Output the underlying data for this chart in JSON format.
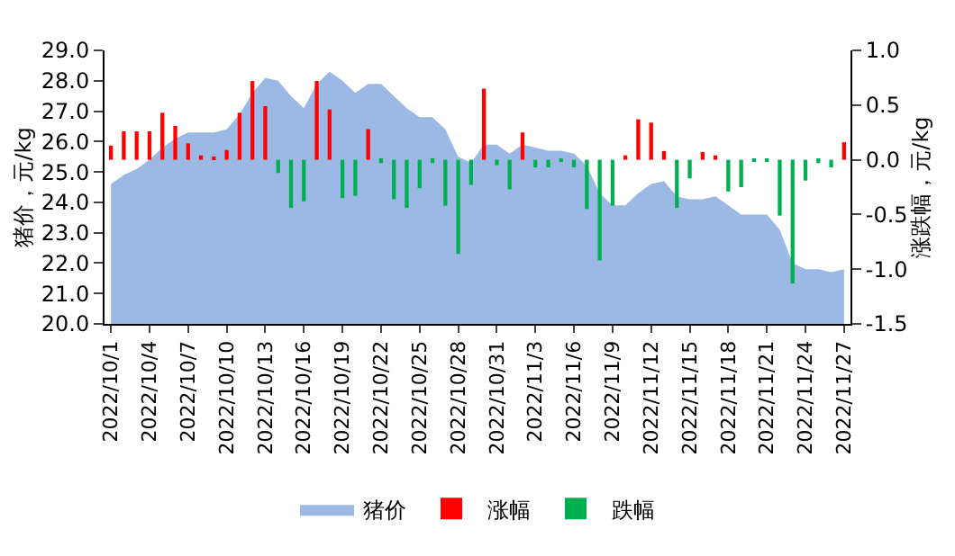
{
  "chart_data": {
    "type": "area",
    "categories": [
      "2022/10/1",
      null,
      null,
      "2022/10/4",
      null,
      null,
      "2022/10/7",
      null,
      null,
      "2022/10/10",
      null,
      null,
      "2022/10/13",
      null,
      null,
      "2022/10/16",
      null,
      null,
      "2022/10/19",
      null,
      null,
      "2022/10/22",
      null,
      null,
      "2022/10/25",
      null,
      null,
      "2022/10/28",
      null,
      null,
      "2022/10/31",
      null,
      null,
      "2022/11/3",
      null,
      null,
      "2022/11/6",
      null,
      null,
      "2022/11/9",
      null,
      null,
      "2022/11/12",
      null,
      null,
      "2022/11/15",
      null,
      null,
      "2022/11/18",
      null,
      null,
      "2022/11/21",
      null,
      null,
      "2022/11/24",
      null,
      null,
      "2022/11/27"
    ],
    "series": [
      {
        "name": "猪价",
        "color": "#9bb9e4",
        "values": [
          24.6,
          24.9,
          25.1,
          25.4,
          25.8,
          26.1,
          26.3,
          26.3,
          26.3,
          26.4,
          26.9,
          27.6,
          28.1,
          28.0,
          27.5,
          27.1,
          27.9,
          28.3,
          28.0,
          27.6,
          27.9,
          27.9,
          27.5,
          27.1,
          26.8,
          26.8,
          26.4,
          25.5,
          25.3,
          25.9,
          25.9,
          25.6,
          25.9,
          25.8,
          25.7,
          25.7,
          25.6,
          25.2,
          24.3,
          23.9,
          23.9,
          24.3,
          24.6,
          24.7,
          24.2,
          24.1,
          24.1,
          24.2,
          23.9,
          23.6,
          23.6,
          23.6,
          23.1,
          22.0,
          21.8,
          21.8,
          21.7,
          21.8
        ]
      },
      {
        "name": "涨幅",
        "type": "bar",
        "axis": "y2",
        "color": "#ff0000",
        "values": [
          0.13,
          0.26,
          0.26,
          0.26,
          0.43,
          0.31,
          0.15,
          0.04,
          0.03,
          0.09,
          0.43,
          0.72,
          0.49,
          null,
          null,
          null,
          0.72,
          0.46,
          null,
          null,
          0.28,
          null,
          null,
          null,
          null,
          null,
          null,
          null,
          null,
          0.65,
          null,
          null,
          0.25,
          null,
          null,
          null,
          null,
          null,
          null,
          null,
          0.04,
          0.37,
          0.34,
          0.08,
          null,
          null,
          0.07,
          0.04,
          null,
          null,
          null,
          null,
          null,
          null,
          null,
          null,
          null,
          0.16
        ]
      },
      {
        "name": "跌幅",
        "type": "bar",
        "axis": "y2",
        "color": "#00b050",
        "values": [
          null,
          null,
          null,
          null,
          null,
          null,
          null,
          null,
          null,
          null,
          null,
          null,
          null,
          -0.12,
          -0.44,
          -0.38,
          null,
          null,
          -0.35,
          -0.33,
          null,
          -0.03,
          -0.36,
          -0.44,
          -0.26,
          -0.03,
          -0.42,
          -0.86,
          -0.23,
          null,
          -0.05,
          -0.27,
          null,
          -0.07,
          -0.07,
          -0.01,
          -0.07,
          -0.45,
          -0.92,
          -0.42,
          null,
          null,
          null,
          null,
          -0.44,
          -0.17,
          null,
          null,
          -0.29,
          -0.25,
          -0.02,
          -0.01,
          -0.51,
          -1.13,
          -0.19,
          -0.03,
          -0.07,
          null
        ]
      }
    ],
    "ylabel": "猪价，元/kg",
    "y2label": "涨跌幅，元/kg",
    "ylim": [
      20,
      29
    ],
    "yticks": [
      {
        "value": 20,
        "label": "20.0"
      },
      {
        "value": 21,
        "label": "21.0"
      },
      {
        "value": 22,
        "label": "22.0"
      },
      {
        "value": 23,
        "label": "23.0"
      },
      {
        "value": 24,
        "label": "24.0"
      },
      {
        "value": 25,
        "label": "25.0"
      },
      {
        "value": 26,
        "label": "26.0"
      },
      {
        "value": 27,
        "label": "27.0"
      },
      {
        "value": 28,
        "label": "28.0"
      },
      {
        "value": 29,
        "label": "29.0"
      }
    ],
    "y2lim": [
      -1.5,
      1.0
    ],
    "y2ticks": [
      {
        "value": -1.5,
        "label": "-1.5"
      },
      {
        "value": -1.0,
        "label": "-1.0"
      },
      {
        "value": -0.5,
        "label": "-0.5"
      },
      {
        "value": 0,
        "label": "0.0"
      },
      {
        "value": 0.5,
        "label": "0.5"
      },
      {
        "value": 1.0,
        "label": "1.0"
      }
    ],
    "legend": "bottom"
  }
}
